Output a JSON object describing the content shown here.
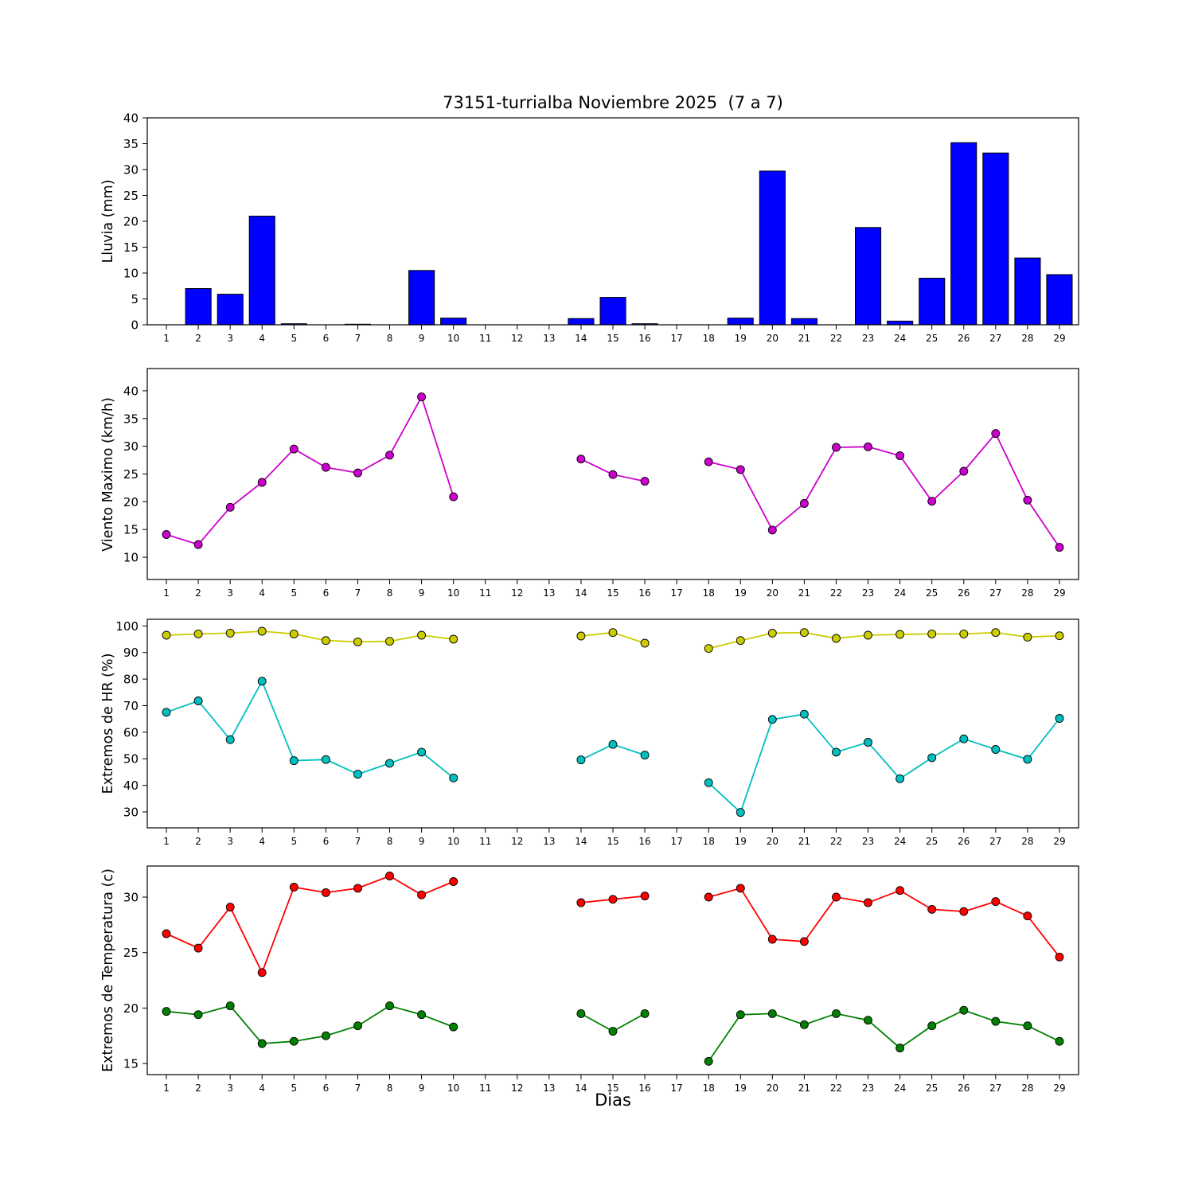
{
  "figure": {
    "title": "73151-turrialba Noviembre 2025  (7 a 7)",
    "xlabel": "Dias",
    "background_color": "#ffffff",
    "station": "73151-turrialba",
    "period_label": "Noviembre 2025  (7 a 7)",
    "missing_days": [
      11,
      12,
      13,
      17
    ]
  },
  "chart_data": [
    {
      "type": "bar",
      "name": "lluvia",
      "ylabel": "Lluvia (mm)",
      "categories": [
        1,
        2,
        3,
        4,
        5,
        6,
        7,
        8,
        9,
        10,
        11,
        12,
        13,
        14,
        15,
        16,
        17,
        18,
        19,
        20,
        21,
        22,
        23,
        24,
        25,
        26,
        27,
        28,
        29
      ],
      "values": [
        0,
        7.0,
        5.9,
        21.0,
        0.2,
        0,
        0.1,
        0,
        10.5,
        1.3,
        0,
        0,
        0,
        1.2,
        5.3,
        0.2,
        0,
        0,
        1.3,
        29.7,
        1.2,
        0,
        18.8,
        0.7,
        9.0,
        35.2,
        33.2,
        12.9,
        9.7
      ],
      "ylim": [
        0,
        40
      ],
      "yticks": [
        0,
        5,
        10,
        15,
        20,
        25,
        30,
        35,
        40
      ],
      "color": "#0000ff"
    },
    {
      "type": "line",
      "name": "viento-maximo",
      "ylabel": "Viento Maximo (km/h)",
      "x": [
        1,
        2,
        3,
        4,
        5,
        6,
        7,
        8,
        9,
        10,
        11,
        12,
        13,
        14,
        15,
        16,
        17,
        18,
        19,
        20,
        21,
        22,
        23,
        24,
        25,
        26,
        27,
        28,
        29
      ],
      "series": [
        {
          "name": "viento-maximo",
          "color": "#cc00cc",
          "marker": "circle",
          "values": [
            14.1,
            12.3,
            19.0,
            23.5,
            29.5,
            26.2,
            25.2,
            28.4,
            38.9,
            20.9,
            null,
            null,
            null,
            27.7,
            24.9,
            23.7,
            null,
            27.2,
            25.8,
            14.9,
            19.7,
            29.8,
            29.9,
            28.3,
            20.1,
            25.5,
            32.3,
            20.3,
            11.8
          ]
        }
      ],
      "ylim": [
        6,
        44
      ],
      "yticks": [
        10,
        15,
        20,
        25,
        30,
        35,
        40
      ]
    },
    {
      "type": "line",
      "name": "extremos-hr",
      "ylabel": "Extremos de HR (%)",
      "x": [
        1,
        2,
        3,
        4,
        5,
        6,
        7,
        8,
        9,
        10,
        11,
        12,
        13,
        14,
        15,
        16,
        17,
        18,
        19,
        20,
        21,
        22,
        23,
        24,
        25,
        26,
        27,
        28,
        29
      ],
      "series": [
        {
          "name": "hr-maxima",
          "color": "#cccc00",
          "marker": "circle",
          "values": [
            96.5,
            97.0,
            97.3,
            98.0,
            97.0,
            94.5,
            94.0,
            94.2,
            96.5,
            95.0,
            null,
            null,
            null,
            96.2,
            97.5,
            93.5,
            null,
            91.5,
            94.5,
            97.3,
            97.5,
            95.3,
            96.5,
            96.8,
            97.0,
            97.0,
            97.5,
            95.8,
            96.3
          ]
        },
        {
          "name": "hr-minima",
          "color": "#00bfbf",
          "marker": "circle",
          "values": [
            67.5,
            71.8,
            57.2,
            79.2,
            49.3,
            49.7,
            44.2,
            48.3,
            52.5,
            42.8,
            null,
            null,
            null,
            49.6,
            55.4,
            51.4,
            null,
            41.0,
            29.8,
            64.8,
            66.8,
            52.5,
            56.2,
            42.5,
            50.4,
            57.5,
            53.5,
            49.8,
            65.2
          ]
        }
      ],
      "ylim": [
        24,
        102.5
      ],
      "yticks": [
        30,
        40,
        50,
        60,
        70,
        80,
        90,
        100
      ]
    },
    {
      "type": "line",
      "name": "extremos-temperatura",
      "ylabel": "Extremos de Temperatura (c)",
      "xlabel": "Dias",
      "x": [
        1,
        2,
        3,
        4,
        5,
        6,
        7,
        8,
        9,
        10,
        11,
        12,
        13,
        14,
        15,
        16,
        17,
        18,
        19,
        20,
        21,
        22,
        23,
        24,
        25,
        26,
        27,
        28,
        29
      ],
      "series": [
        {
          "name": "temperatura-maxima",
          "color": "#ff0000",
          "marker": "circle",
          "values": [
            26.7,
            25.4,
            29.1,
            23.2,
            30.9,
            30.4,
            30.8,
            31.9,
            30.2,
            31.4,
            null,
            null,
            null,
            29.5,
            29.8,
            30.1,
            null,
            30.0,
            30.8,
            26.2,
            26.0,
            30.0,
            29.5,
            30.6,
            28.9,
            28.7,
            29.6,
            28.3,
            24.6
          ]
        },
        {
          "name": "temperatura-minima",
          "color": "#008000",
          "marker": "circle",
          "values": [
            19.7,
            19.4,
            20.2,
            16.8,
            17.0,
            17.5,
            18.4,
            20.2,
            19.4,
            18.3,
            null,
            null,
            null,
            19.5,
            17.9,
            19.5,
            null,
            15.2,
            19.4,
            19.5,
            18.5,
            19.5,
            18.9,
            16.4,
            18.4,
            19.8,
            18.8,
            18.4,
            17.0
          ]
        }
      ],
      "ylim": [
        14,
        32.8
      ],
      "yticks": [
        15,
        20,
        25,
        30
      ]
    }
  ]
}
